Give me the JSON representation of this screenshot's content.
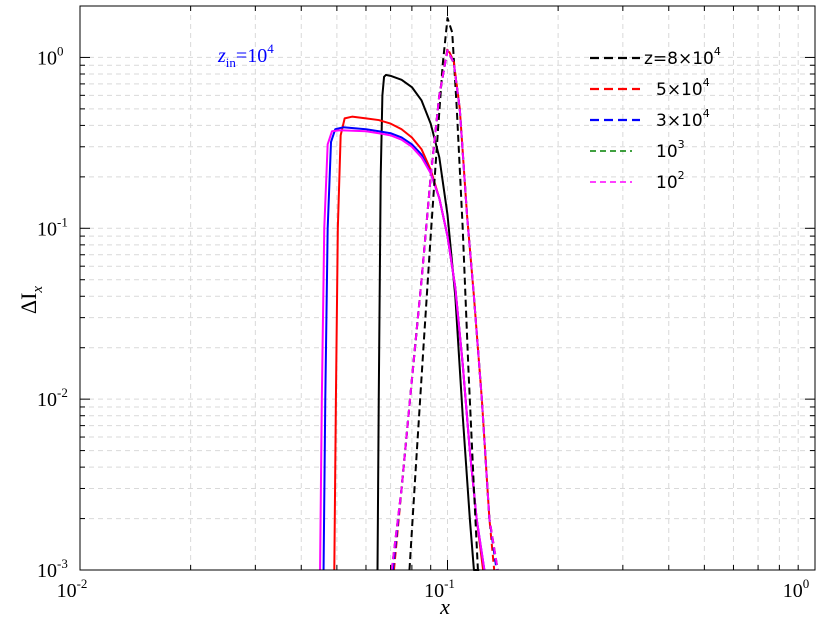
{
  "chart_data": {
    "type": "line",
    "xscale": "log",
    "yscale": "log",
    "xlim": [
      0.01,
      1
    ],
    "ylim": [
      0.001,
      2
    ],
    "grid": true,
    "xlabel": "x",
    "ylabel_main": "ΔI",
    "ylabel_sub": "x",
    "annotation": {
      "main": "z",
      "sub": "in",
      "base": "=10",
      "exp": "4",
      "color": "#0000ff"
    },
    "x_ticks": [
      {
        "value": 0.01,
        "base": "10",
        "exp": "-2"
      },
      {
        "value": 0.1,
        "base": "10",
        "exp": "-1"
      },
      {
        "value": 1,
        "base": "10",
        "exp": "0"
      }
    ],
    "y_ticks": [
      {
        "value": 0.001,
        "base": "10",
        "exp": "-3"
      },
      {
        "value": 0.01,
        "base": "10",
        "exp": "-2"
      },
      {
        "value": 0.1,
        "base": "10",
        "exp": "-1"
      },
      {
        "value": 1,
        "base": "10",
        "exp": "0"
      }
    ],
    "legend": {
      "position": "top-right",
      "entries": [
        {
          "text": "z=8×10",
          "exp": "4",
          "color": "#000000"
        },
        {
          "text": "5×10",
          "exp": "4",
          "color": "#ff0000"
        },
        {
          "text": "3×10",
          "exp": "4",
          "color": "#0000ff"
        },
        {
          "text": "10",
          "exp": "3",
          "color": "#008000"
        },
        {
          "text": "10",
          "exp": "2",
          "color": "#ff00ff"
        }
      ]
    },
    "series": [
      {
        "color": "#000000",
        "dash": true,
        "x": [
          0.0788,
          0.082,
          0.086,
          0.09,
          0.094,
          0.097,
          0.1,
          0.103,
          0.106,
          0.11,
          0.114,
          0.118,
          0.121
        ],
        "y": [
          0.001,
          0.004,
          0.02,
          0.09,
          0.35,
          0.9,
          1.7,
          1.4,
          0.5,
          0.1,
          0.015,
          0.003,
          0.001
        ]
      },
      {
        "color": "#ff0000",
        "dash": true,
        "x": [
          0.0715,
          0.075,
          0.08,
          0.085,
          0.09,
          0.095,
          0.1,
          0.104,
          0.108,
          0.113,
          0.118,
          0.124,
          0.13,
          0.134
        ],
        "y": [
          0.001,
          0.003,
          0.013,
          0.05,
          0.2,
          0.6,
          1.13,
          0.95,
          0.5,
          0.12,
          0.04,
          0.01,
          0.002,
          0.001
        ]
      },
      {
        "color": "#0000ff",
        "dash": true,
        "x": [
          0.071,
          0.075,
          0.08,
          0.085,
          0.09,
          0.095,
          0.1,
          0.104,
          0.108,
          0.113,
          0.118,
          0.124,
          0.13,
          0.136
        ],
        "y": [
          0.001,
          0.003,
          0.013,
          0.05,
          0.2,
          0.6,
          1.1,
          0.93,
          0.5,
          0.12,
          0.04,
          0.01,
          0.002,
          0.001
        ]
      },
      {
        "color": "#008000",
        "dash": true,
        "x": [
          0.0705,
          0.075,
          0.08,
          0.085,
          0.09,
          0.095,
          0.1,
          0.104,
          0.108,
          0.113,
          0.118,
          0.124,
          0.13,
          0.137
        ],
        "y": [
          0.001,
          0.003,
          0.013,
          0.05,
          0.2,
          0.6,
          1.1,
          0.93,
          0.5,
          0.12,
          0.04,
          0.01,
          0.002,
          0.001
        ]
      },
      {
        "color": "#ff00ff",
        "dash": true,
        "x": [
          0.0705,
          0.075,
          0.08,
          0.085,
          0.09,
          0.095,
          0.1,
          0.104,
          0.108,
          0.113,
          0.118,
          0.124,
          0.13,
          0.137
        ],
        "y": [
          0.001,
          0.003,
          0.013,
          0.05,
          0.2,
          0.6,
          1.1,
          0.93,
          0.5,
          0.12,
          0.04,
          0.01,
          0.002,
          0.001
        ]
      },
      {
        "color": "#000000",
        "dash": false,
        "x": [
          0.0645,
          0.065,
          0.0658,
          0.0665,
          0.0672,
          0.068,
          0.07,
          0.075,
          0.08,
          0.085,
          0.09,
          0.095,
          0.1,
          0.105,
          0.11,
          0.115,
          0.118,
          0.122
        ],
        "y": [
          0.001,
          0.01,
          0.2,
          0.6,
          0.77,
          0.79,
          0.78,
          0.74,
          0.67,
          0.56,
          0.41,
          0.26,
          0.12,
          0.04,
          0.008,
          0.002,
          0.001,
          0.001
        ]
      },
      {
        "color": "#ff0000",
        "dash": false,
        "x": [
          0.0492,
          0.0497,
          0.0503,
          0.0512,
          0.0525,
          0.055,
          0.06,
          0.065,
          0.07,
          0.075,
          0.08,
          0.085,
          0.09,
          0.095,
          0.1,
          0.105,
          0.11,
          0.115,
          0.12,
          0.125
        ],
        "y": [
          0.001,
          0.01,
          0.1,
          0.35,
          0.44,
          0.45,
          0.44,
          0.43,
          0.41,
          0.38,
          0.34,
          0.29,
          0.22,
          0.15,
          0.09,
          0.045,
          0.016,
          0.005,
          0.002,
          0.001
        ]
      },
      {
        "color": "#0000ff",
        "dash": false,
        "x": [
          0.046,
          0.0465,
          0.0472,
          0.0482,
          0.0495,
          0.052,
          0.06,
          0.065,
          0.07,
          0.075,
          0.08,
          0.085,
          0.09,
          0.095,
          0.1,
          0.105,
          0.11,
          0.115,
          0.12,
          0.126
        ],
        "y": [
          0.001,
          0.01,
          0.1,
          0.32,
          0.38,
          0.39,
          0.38,
          0.37,
          0.36,
          0.34,
          0.31,
          0.27,
          0.21,
          0.15,
          0.09,
          0.045,
          0.016,
          0.005,
          0.002,
          0.001
        ]
      },
      {
        "color": "#ff00ff",
        "dash": false,
        "x": [
          0.045,
          0.0455,
          0.0462,
          0.0472,
          0.0485,
          0.051,
          0.06,
          0.065,
          0.07,
          0.075,
          0.08,
          0.085,
          0.09,
          0.095,
          0.1,
          0.105,
          0.11,
          0.115,
          0.12,
          0.126
        ],
        "y": [
          0.001,
          0.01,
          0.1,
          0.31,
          0.37,
          0.375,
          0.37,
          0.36,
          0.35,
          0.33,
          0.3,
          0.26,
          0.21,
          0.15,
          0.09,
          0.045,
          0.016,
          0.005,
          0.002,
          0.001
        ]
      }
    ]
  }
}
